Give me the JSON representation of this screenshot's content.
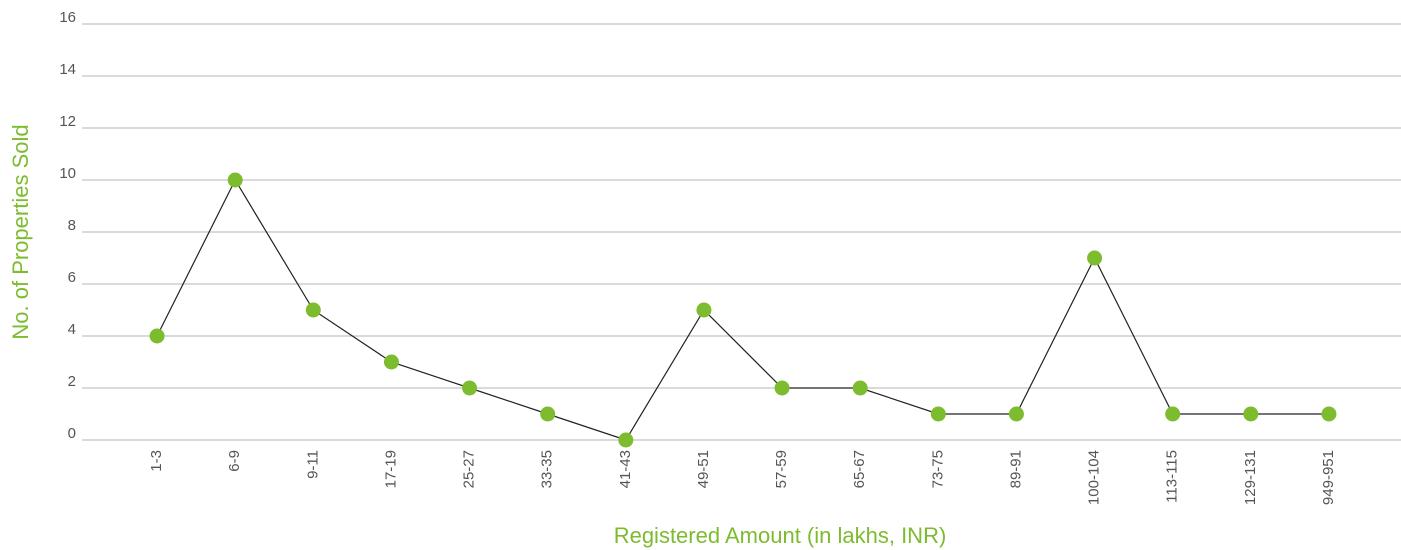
{
  "chart_data": {
    "type": "line",
    "x_label": "Registered Amount (in lakhs, INR)",
    "y_label": "No. of Properties Sold",
    "categories": [
      "1-3",
      "6-9",
      "9-11",
      "17-19",
      "25-27",
      "33-35",
      "41-43",
      "49-51",
      "57-59",
      "65-67",
      "73-75",
      "89-91",
      "100-104",
      "113-115",
      "129-131",
      "949-951"
    ],
    "values": [
      4,
      10,
      5,
      3,
      2,
      1,
      0,
      5,
      2,
      2,
      1,
      1,
      7,
      1,
      1,
      1
    ],
    "line_color": "#222222",
    "marker_color": "#7dbb2f",
    "ylim": [
      0,
      16
    ],
    "yticks": [
      0,
      2,
      4,
      6,
      8,
      10,
      12,
      14,
      16
    ],
    "grid": true
  }
}
